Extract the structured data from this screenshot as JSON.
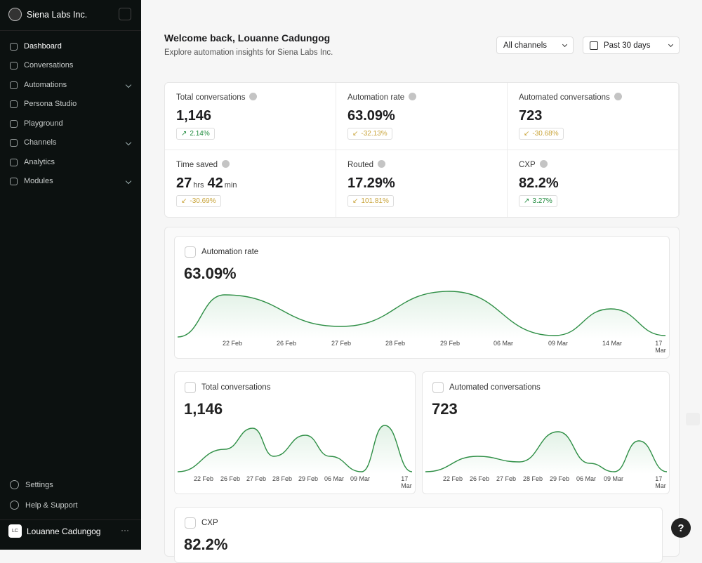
{
  "sidebar": {
    "org": "Siena Labs Inc.",
    "nav": [
      "Dashboard",
      "Conversations",
      "Automations",
      "Persona Studio",
      "Playground",
      "Channels",
      "Analytics",
      "Modules"
    ],
    "footer": [
      "Settings",
      "Help & Support"
    ],
    "user": {
      "initials": "LC",
      "name": "Louanne Cadungog"
    }
  },
  "header": {
    "title": "Welcome back, Louanne Cadungog",
    "subtitle": "Explore automation insights for Siena Labs Inc.",
    "filters": [
      "All channels",
      "Past 30 days"
    ]
  },
  "kpis": [
    {
      "label": "Total conversations",
      "value": [
        "1,146"
      ],
      "change": "2.14%",
      "color": "#1e8a3c"
    },
    {
      "label": "Automation rate",
      "value": [
        "63.09%"
      ],
      "change": "-32.13%",
      "color": "#c9a43a"
    },
    {
      "label": "Automated conversations",
      "value": [
        "723"
      ],
      "change": "-30.68%",
      "color": "#c9a43a"
    },
    {
      "label": "Time saved",
      "value": [
        "27",
        "hrs",
        "42",
        "min"
      ],
      "change": "-30.69%",
      "color": "#c9a43a"
    },
    {
      "label": "Routed",
      "value": [
        "17.29%"
      ],
      "change": "101.81%",
      "color": "#c9a43a"
    },
    {
      "label": "CXP",
      "value": [
        "82.2%"
      ],
      "change": "3.27%",
      "color": "#1e8a3c"
    }
  ],
  "charts": [
    {
      "title": "Automation rate",
      "value": "63.09%",
      "x_labels": [
        "22 Feb",
        "26 Feb",
        "27 Feb",
        "28 Feb",
        "29 Feb",
        "06 Mar",
        "09 Mar",
        "14 Mar",
        "17 Mar"
      ]
    },
    {
      "title": "Total conversations",
      "value": "1,146",
      "x_labels": [
        "22 Feb",
        "26 Feb",
        "27 Feb",
        "28 Feb",
        "29 Feb",
        "06 Mar",
        "09 Mar",
        "17 Mar"
      ]
    },
    {
      "title": "Automated conversations",
      "value": "723",
      "x_labels": [
        "22 Feb",
        "26 Feb",
        "27 Feb",
        "28 Feb",
        "29 Feb",
        "06 Mar",
        "09 Mar",
        "17 Mar"
      ]
    },
    {
      "title": "CXP",
      "value": "82.2%"
    }
  ]
}
